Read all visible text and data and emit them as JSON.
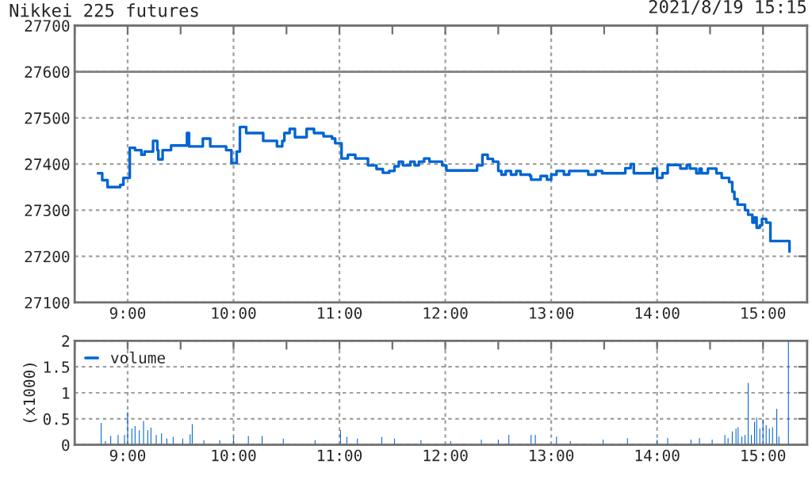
{
  "chart_data": [
    {
      "type": "step",
      "title": "Nikkei 225 futures",
      "annotations": [
        "2021/8/19 15:15"
      ],
      "xlim": [
        8.5,
        15.4167
      ],
      "xticks": [
        {
          "value": 8.5,
          "label": null
        },
        {
          "value": 9,
          "label": "9:00"
        },
        {
          "value": 9.5,
          "label": null
        },
        {
          "value": 10,
          "label": "10:00"
        },
        {
          "value": 10.5,
          "label": null
        },
        {
          "value": 11,
          "label": "11:00"
        },
        {
          "value": 11.5,
          "label": null
        },
        {
          "value": 12,
          "label": "12:00"
        },
        {
          "value": 12.5,
          "label": null
        },
        {
          "value": 13,
          "label": "13:00"
        },
        {
          "value": 13.5,
          "label": null
        },
        {
          "value": 14,
          "label": "14:00"
        },
        {
          "value": 14.5,
          "label": null
        },
        {
          "value": 15,
          "label": "15:00"
        }
      ],
      "ylim": [
        27100,
        27700
      ],
      "yticks": [
        27100,
        27200,
        27300,
        27400,
        27500,
        27600,
        27700
      ],
      "grid": true,
      "ref_lines": [
        {
          "axis": "y",
          "value": 27600,
          "color": "#808080",
          "line_style": "solid"
        }
      ],
      "series": [
        {
          "color": "#0064d2",
          "x": [
            8.72,
            8.76,
            8.81,
            8.93,
            8.96,
            9.02,
            9.07,
            9.13,
            9.16,
            9.18,
            9.24,
            9.28,
            9.29,
            9.33,
            9.41,
            9.56,
            9.58,
            9.71,
            9.78,
            9.93,
            9.98,
            10.03,
            10.06,
            10.12,
            10.28,
            10.41,
            10.46,
            10.48,
            10.53,
            10.58,
            10.69,
            10.76,
            10.85,
            10.93,
            10.96,
            11.02,
            11.08,
            11.15,
            11.27,
            11.35,
            11.41,
            11.47,
            11.52,
            11.56,
            11.6,
            11.67,
            11.71,
            11.75,
            11.8,
            11.85,
            11.97,
            12.01,
            12.13,
            12.3,
            12.35,
            12.4,
            12.45,
            12.5,
            12.53,
            12.57,
            12.62,
            12.67,
            12.71,
            12.8,
            12.81,
            12.9,
            12.96,
            13.0,
            13.05,
            13.12,
            13.17,
            13.35,
            13.42,
            13.48,
            13.7,
            13.75,
            13.78,
            13.85,
            13.96,
            14.0,
            14.05,
            14.1,
            14.22,
            14.28,
            14.31,
            14.37,
            14.4,
            14.42,
            14.48,
            14.56,
            14.61,
            14.68,
            14.71,
            14.73,
            14.76,
            14.83,
            14.86,
            14.9,
            14.92,
            14.94,
            14.97,
            14.99,
            15.03,
            15.07,
            15.25
          ],
          "values": [
            27380,
            27365,
            27350,
            27355,
            27370,
            27435,
            27430,
            27420,
            27427,
            27427,
            27450,
            27430,
            27410,
            27430,
            27440,
            27467,
            27438,
            27455,
            27438,
            27430,
            27402,
            27427,
            27480,
            27467,
            27450,
            27438,
            27450,
            27467,
            27476,
            27458,
            27476,
            27467,
            27460,
            27455,
            27445,
            27412,
            27420,
            27412,
            27397,
            27389,
            27381,
            27385,
            27395,
            27405,
            27397,
            27405,
            27397,
            27405,
            27412,
            27405,
            27397,
            27386,
            27386,
            27397,
            27420,
            27411,
            27405,
            27385,
            27377,
            27385,
            27377,
            27385,
            27377,
            27374,
            27366,
            27374,
            27366,
            27377,
            27385,
            27377,
            27385,
            27377,
            27385,
            27380,
            27391,
            27400,
            27380,
            27380,
            27390,
            27370,
            27380,
            27398,
            27390,
            27398,
            27390,
            27380,
            27390,
            27380,
            27390,
            27380,
            27370,
            27361,
            27340,
            27324,
            27312,
            27300,
            27290,
            27273,
            27284,
            27262,
            27267,
            27281,
            27273,
            27233,
            27210
          ]
        }
      ]
    },
    {
      "type": "bar",
      "ylabel": "(x1000)",
      "xlim": [
        8.5,
        15.4167
      ],
      "xticks": [
        {
          "value": 8.5,
          "label": null
        },
        {
          "value": 9,
          "label": "9:00"
        },
        {
          "value": 9.5,
          "label": null
        },
        {
          "value": 10,
          "label": "10:00"
        },
        {
          "value": 10.5,
          "label": null
        },
        {
          "value": 11,
          "label": "11:00"
        },
        {
          "value": 11.5,
          "label": null
        },
        {
          "value": 12,
          "label": "12:00"
        },
        {
          "value": 12.5,
          "label": null
        },
        {
          "value": 13,
          "label": "13:00"
        },
        {
          "value": 13.5,
          "label": null
        },
        {
          "value": 14,
          "label": "14:00"
        },
        {
          "value": 14.5,
          "label": null
        },
        {
          "value": 15,
          "label": "15:00"
        }
      ],
      "ylim": [
        0,
        2
      ],
      "yticks": [
        0,
        0.5,
        1,
        1.5,
        2
      ],
      "grid": true,
      "legend": "top left",
      "series": [
        {
          "name": "volume",
          "color": "#0064d2",
          "x": [
            8.75,
            8.79,
            8.84,
            8.91,
            8.97,
            9.0,
            9.04,
            9.07,
            9.11,
            9.15,
            9.19,
            9.22,
            9.27,
            9.32,
            9.37,
            9.43,
            9.52,
            9.59,
            9.61,
            9.72,
            9.87,
            10.0,
            10.14,
            10.27,
            10.47,
            10.77,
            11.01,
            11.07,
            11.17,
            11.4,
            11.52,
            11.77,
            12.05,
            12.34,
            12.5,
            12.6,
            12.81,
            12.85,
            13.05,
            13.18,
            13.49,
            13.72,
            14.0,
            14.1,
            14.32,
            14.4,
            14.52,
            14.64,
            14.67,
            14.71,
            14.745,
            14.765,
            14.8,
            14.83,
            14.86,
            14.89,
            14.92,
            14.94,
            14.97,
            15.0,
            15.03,
            15.06,
            15.09,
            15.13,
            15.15,
            15.24
          ],
          "values": [
            0.42,
            0.07,
            0.17,
            0.19,
            0.19,
            0.63,
            0.31,
            0.36,
            0.28,
            0.46,
            0.28,
            0.33,
            0.19,
            0.22,
            0.12,
            0.15,
            0.12,
            0.2,
            0.4,
            0.09,
            0.09,
            0.15,
            0.17,
            0.17,
            0.12,
            0.09,
            0.28,
            0.15,
            0.12,
            0.15,
            0.12,
            0.09,
            0.07,
            0.1,
            0.1,
            0.19,
            0.19,
            0.19,
            0.16,
            0.07,
            0.1,
            0.13,
            0.1,
            0.13,
            0.1,
            0.13,
            0.1,
            0.19,
            0.13,
            0.26,
            0.31,
            0.34,
            0.16,
            0.19,
            1.19,
            0.19,
            0.44,
            0.52,
            0.31,
            0.49,
            0.38,
            0.31,
            0.34,
            0.69,
            0.16,
            2.0
          ]
        }
      ]
    }
  ]
}
